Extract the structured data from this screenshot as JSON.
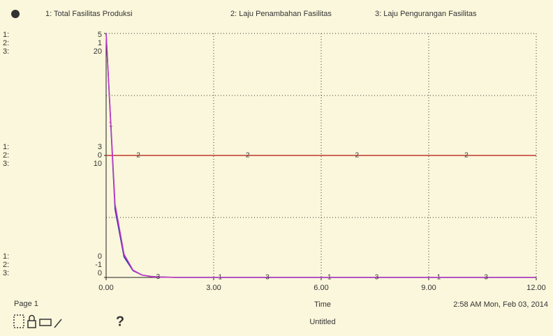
{
  "chart_data": {
    "type": "line",
    "x": [
      0,
      0.25,
      0.5,
      0.75,
      1,
      1.25,
      1.5,
      2,
      3,
      4,
      5,
      6,
      7,
      8,
      9,
      10,
      11,
      12
    ],
    "xlim": [
      0,
      12
    ],
    "xticks": [
      {
        "value": 0,
        "label": "0.00"
      },
      {
        "value": 3,
        "label": "3.00"
      },
      {
        "value": 6,
        "label": "6.00"
      },
      {
        "value": 9,
        "label": "9.00"
      },
      {
        "value": 12,
        "label": "12.00"
      }
    ],
    "xlabel": "Time",
    "grid": true,
    "series": [
      {
        "name": "1: Total Fasilitas Produksi",
        "key": "1:",
        "marker": "1",
        "color": "#2b2f9a",
        "values": [
          5,
          1.4,
          0.42,
          0.14,
          0.05,
          0.02,
          0.01,
          0,
          0,
          0,
          0,
          0,
          0,
          0,
          0,
          0,
          0,
          0
        ],
        "ylim": [
          0,
          5
        ],
        "yticks": [
          0,
          {
            "value": 2.5,
            "label": "3"
          },
          5
        ]
      },
      {
        "name": "2: Laju Penambahan  Fasilitas",
        "key": "2:",
        "marker": "2",
        "color": "#c0392b",
        "values": [
          0,
          0,
          0,
          0,
          0,
          0,
          0,
          0,
          0,
          0,
          0,
          0,
          0,
          0,
          0,
          0,
          0,
          0
        ],
        "ylim": [
          -1,
          1
        ],
        "yticks": [
          -1,
          0,
          1
        ]
      },
      {
        "name": "3: Laju Pengurangan Fasilitas",
        "key": "3:",
        "marker": "3",
        "color": "#c23bc8",
        "values": [
          20,
          6,
          1.9,
          0.6,
          0.2,
          0.07,
          0.02,
          0,
          0,
          0,
          0,
          0,
          0,
          0,
          0,
          0,
          0,
          0
        ],
        "ylim": [
          0,
          20
        ],
        "yticks": [
          0,
          10,
          20
        ]
      }
    ]
  },
  "footer": {
    "page": "Page 1",
    "timestamp": "2:58 AM   Mon, Feb 03, 2014",
    "document": "Untitled",
    "help": "?"
  }
}
